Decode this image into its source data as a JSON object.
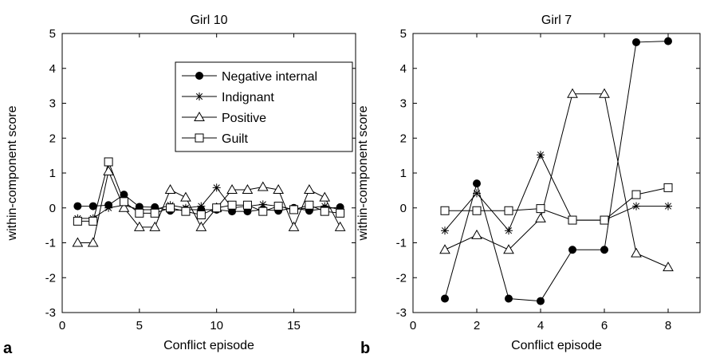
{
  "chart_data": [
    {
      "type": "line",
      "panel_label": "a",
      "title": "Girl 10",
      "xlabel": "Conflict episode",
      "ylabel": "within-component score",
      "xlim": [
        0,
        19
      ],
      "ylim": [
        -3,
        5
      ],
      "xticks": [
        0,
        5,
        10,
        15
      ],
      "yticks": [
        -3,
        -2,
        -1,
        0,
        1,
        2,
        3,
        4,
        5
      ],
      "legend": "top-right",
      "x": [
        1,
        2,
        3,
        4,
        5,
        6,
        7,
        8,
        9,
        10,
        11,
        12,
        13,
        14,
        15,
        16,
        17,
        18
      ],
      "series": [
        {
          "name": "Negative internal",
          "marker": "filled-circle",
          "values": [
            0.05,
            0.05,
            0.08,
            0.38,
            0.03,
            0.02,
            -0.08,
            -0.05,
            -0.05,
            -0.05,
            -0.1,
            -0.1,
            -0.05,
            -0.08,
            0.0,
            -0.08,
            -0.02,
            0.02
          ]
        },
        {
          "name": "Indignant",
          "marker": "asterisk",
          "values": [
            -0.3,
            -0.3,
            0.0,
            0.08,
            -0.05,
            -0.05,
            0.08,
            0.0,
            0.05,
            0.58,
            0.0,
            0.05,
            0.1,
            0.05,
            -0.05,
            0.0,
            0.05,
            -0.05
          ]
        },
        {
          "name": "Positive",
          "marker": "open-triangle",
          "values": [
            -1.0,
            -1.0,
            1.05,
            0.0,
            -0.55,
            -0.55,
            0.52,
            0.3,
            -0.55,
            0.0,
            0.52,
            0.52,
            0.6,
            0.52,
            -0.55,
            0.52,
            0.3,
            -0.55
          ]
        },
        {
          "name": "Guilt",
          "marker": "open-square",
          "values": [
            -0.38,
            -0.38,
            1.32,
            0.18,
            -0.15,
            -0.15,
            0.0,
            -0.1,
            -0.2,
            0.0,
            0.08,
            0.08,
            -0.1,
            0.05,
            -0.05,
            0.08,
            -0.1,
            -0.15
          ]
        }
      ]
    },
    {
      "type": "line",
      "panel_label": "b",
      "title": "Girl 7",
      "xlabel": "Conflict episode",
      "ylabel": "within-component score",
      "xlim": [
        0,
        9
      ],
      "ylim": [
        -3,
        5
      ],
      "xticks": [
        0,
        2,
        4,
        6,
        8
      ],
      "yticks": [
        -3,
        -2,
        -1,
        0,
        1,
        2,
        3,
        4,
        5
      ],
      "x": [
        1,
        2,
        3,
        4,
        5,
        6,
        7,
        8
      ],
      "series": [
        {
          "name": "Negative internal",
          "marker": "filled-circle",
          "values": [
            -2.6,
            0.7,
            -2.6,
            -2.67,
            -1.2,
            -1.2,
            4.75,
            4.78
          ]
        },
        {
          "name": "Indignant",
          "marker": "asterisk",
          "values": [
            -0.65,
            0.42,
            -0.65,
            1.52,
            -0.35,
            -0.35,
            0.05,
            0.05
          ]
        },
        {
          "name": "Positive",
          "marker": "open-triangle",
          "values": [
            -1.2,
            -0.78,
            -1.2,
            -0.3,
            3.27,
            3.27,
            -1.3,
            -1.7
          ]
        },
        {
          "name": "Guilt",
          "marker": "open-square",
          "values": [
            -0.08,
            -0.08,
            -0.08,
            -0.02,
            -0.35,
            -0.35,
            0.38,
            0.58
          ]
        }
      ]
    }
  ]
}
